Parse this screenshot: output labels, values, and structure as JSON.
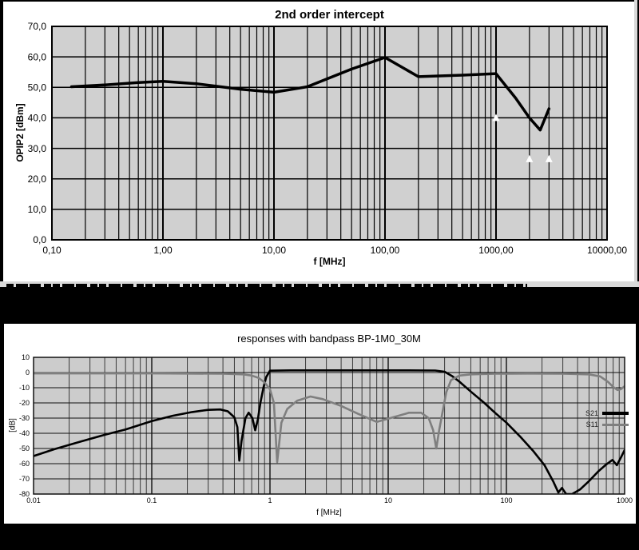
{
  "page": {
    "background": "#000000"
  },
  "divider": {
    "strip_color": "#d9d9d9",
    "band_color": "#000000"
  },
  "chart_data": [
    {
      "type": "line",
      "title": "2nd order intercept",
      "xlabel": "f [MHz]",
      "ylabel": "OPIP2 [dBm]",
      "x_scale": "log",
      "xlim": [
        0.1,
        10000
      ],
      "ylim": [
        0,
        70
      ],
      "grid": true,
      "legend": "none",
      "plot_bg": "#d0d0d0",
      "x_ticks": [
        0.1,
        1,
        10,
        100,
        1000,
        10000
      ],
      "x_tick_labels": [
        "0,10",
        "1,00",
        "10,00",
        "100,00",
        "1000,00",
        "10000,00"
      ],
      "y_ticks": [
        0,
        10,
        20,
        30,
        40,
        50,
        60,
        70
      ],
      "y_tick_labels": [
        "0,0",
        "10,0",
        "20,0",
        "30,0",
        "40,0",
        "50,0",
        "60,0",
        "70,0"
      ],
      "series": [
        {
          "name": "OPIP2",
          "color": "#000000",
          "width": 3.5,
          "x": [
            0.15,
            0.3,
            0.6,
            1.0,
            2.0,
            5.0,
            10,
            20,
            50,
            100,
            200,
            500,
            1000,
            1500,
            2000,
            2500,
            3000
          ],
          "y": [
            50.2,
            50.8,
            51.6,
            52.0,
            51.2,
            49.4,
            48.4,
            50.2,
            56.0,
            59.8,
            53.5,
            54.0,
            54.5,
            46.5,
            40.0,
            36.0,
            43.0
          ]
        }
      ],
      "markers": {
        "shape": "triangle-up",
        "color": "#ffffff",
        "points": [
          [
            1000,
            40.0
          ],
          [
            2000,
            26.5
          ],
          [
            3000,
            26.5
          ]
        ]
      }
    },
    {
      "type": "line",
      "title": "responses with bandpass BP-1M0_30M",
      "xlabel": "f [MHz]",
      "ylabel": "[dB]",
      "x_scale": "log",
      "xlim": [
        0.01,
        1000
      ],
      "ylim": [
        -80,
        10
      ],
      "grid": true,
      "legend": "inside-right",
      "plot_bg": "#cccccc",
      "x_ticks": [
        0.01,
        0.1,
        1,
        10,
        100,
        1000
      ],
      "x_tick_labels": [
        "0.01",
        "0.1",
        "1",
        "10",
        "100",
        "1000"
      ],
      "y_ticks": [
        -80,
        -70,
        -60,
        -50,
        -40,
        -30,
        -20,
        -10,
        0,
        10
      ],
      "y_tick_labels": [
        "-80",
        "-70",
        "-60",
        "-50",
        "-40",
        "-30",
        "-20",
        "-10",
        "0",
        "10"
      ],
      "series": [
        {
          "name": "S21",
          "color": "#000000",
          "width": 2.6,
          "x": [
            0.01,
            0.015,
            0.025,
            0.04,
            0.06,
            0.1,
            0.15,
            0.22,
            0.3,
            0.38,
            0.44,
            0.5,
            0.53,
            0.55,
            0.575,
            0.62,
            0.66,
            0.71,
            0.75,
            0.79,
            0.83,
            0.88,
            0.93,
            1.0,
            1.5,
            3,
            8,
            15,
            25,
            30,
            35,
            40,
            50,
            65,
            80,
            100,
            130,
            170,
            210,
            250,
            275,
            295,
            320,
            360,
            420,
            500,
            600,
            700,
            790,
            860,
            930,
            1000
          ],
          "y": [
            -55,
            -50.5,
            -45.5,
            -41,
            -37.5,
            -32,
            -28.5,
            -26,
            -24.6,
            -24.3,
            -25.5,
            -29.5,
            -36,
            -58,
            -45,
            -30,
            -26.5,
            -30,
            -38,
            -31,
            -20,
            -10,
            -3,
            1.2,
            1.4,
            1.4,
            1.4,
            1.4,
            1.3,
            0.5,
            -2.5,
            -6,
            -12.5,
            -20,
            -26.5,
            -33,
            -42,
            -52,
            -61,
            -72,
            -79,
            -76,
            -80,
            -80,
            -77,
            -71.5,
            -65,
            -60.5,
            -57.5,
            -61,
            -56,
            -51
          ]
        },
        {
          "name": "S11",
          "color": "#7f7f7f",
          "width": 2.6,
          "x": [
            0.01,
            0.1,
            0.4,
            0.6,
            0.7,
            0.8,
            0.9,
            1.0,
            1.08,
            1.15,
            1.25,
            1.4,
            1.7,
            2.2,
            2.8,
            4,
            5.5,
            8,
            11,
            15,
            19,
            22,
            24,
            25.5,
            27,
            29,
            31,
            34,
            40,
            50,
            80,
            150,
            300,
            500,
            620,
            720,
            800,
            870,
            930,
            1000
          ],
          "y": [
            -0.6,
            -0.6,
            -0.8,
            -1.2,
            -2,
            -3.5,
            -6.5,
            -11,
            -20,
            -59,
            -33,
            -24,
            -18.5,
            -15.8,
            -17.5,
            -22,
            -27,
            -32.5,
            -29.5,
            -26.5,
            -26.5,
            -30,
            -38,
            -50,
            -38,
            -25,
            -13,
            -5,
            -2,
            -1.2,
            -0.8,
            -0.7,
            -0.8,
            -1.2,
            -2.5,
            -6,
            -9.5,
            -11.5,
            -11,
            -9
          ]
        }
      ]
    }
  ]
}
